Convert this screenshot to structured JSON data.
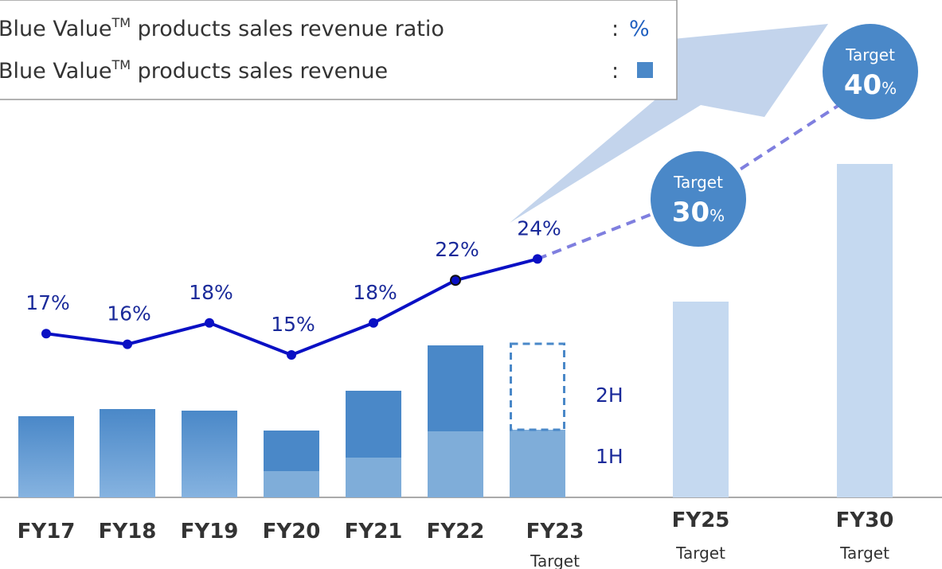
{
  "chart_data": {
    "type": "bar-line",
    "legend": [
      {
        "text": "Blue Value",
        "mark": "TM",
        "rest": " products sales revenue ratio",
        "sep": ":",
        "symbol": "%"
      },
      {
        "text": "Blue Value",
        "mark": "TM",
        "rest": " products sales revenue",
        "sep": ":"
      }
    ],
    "categories": [
      "FY17",
      "FY18",
      "FY19",
      "FY20",
      "FY21",
      "FY22",
      "FY23",
      "FY25",
      "FY30"
    ],
    "category_sublabels": [
      null,
      null,
      null,
      null,
      null,
      null,
      "Target",
      "Target",
      "Target"
    ],
    "bar_series": [
      {
        "values": [
          102,
          111,
          109,
          null,
          null,
          null,
          null,
          null,
          null
        ],
        "color": "#4a88c8",
        "gradient_to": "#86b3e0"
      },
      {
        "name": "1H",
        "values": [
          null,
          null,
          null,
          33,
          50,
          83,
          85,
          null,
          null
        ],
        "color": "#7fadd9"
      },
      {
        "name": "2H",
        "values": [
          null,
          null,
          null,
          51,
          84,
          108,
          108,
          null,
          null
        ],
        "color": "#4a88c8",
        "dashed": [
          false,
          false,
          false,
          false,
          false,
          false,
          true,
          false,
          false
        ]
      },
      {
        "values": [
          null,
          null,
          null,
          null,
          null,
          null,
          null,
          246,
          419
        ],
        "color": "#c5d9f0"
      }
    ],
    "line_series": {
      "values": [
        17,
        16,
        18,
        15,
        18,
        22,
        24,
        30,
        40
      ],
      "value_labels": [
        "17%",
        "16%",
        "18%",
        "15%",
        "18%",
        "22%",
        "24%",
        null,
        null
      ],
      "color": "#0a10c4",
      "dashed_color": "#7f7fdf",
      "dashed_after": 6
    },
    "target_label": "Target",
    "target_unit": "%",
    "target_color": "#4a88c8"
  }
}
